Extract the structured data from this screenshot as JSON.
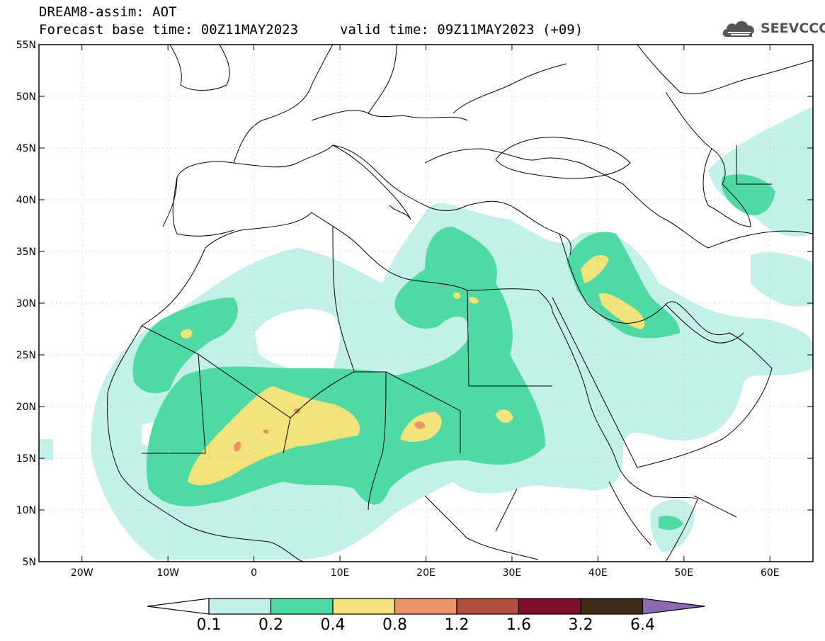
{
  "header": {
    "title_line1": "DREAM8-assim: AOT",
    "title_line2": "Forecast base time: 00Z11MAY2023",
    "valid_time": "valid time: 09Z11MAY2023 (+09)"
  },
  "logo": {
    "text": "SEEVCCC",
    "icon": "cloud-logo-icon"
  },
  "map": {
    "lon_range": [
      -25,
      65
    ],
    "lat_range": [
      5,
      55
    ],
    "lat_ticks": [
      "55N",
      "50N",
      "45N",
      "40N",
      "35N",
      "30N",
      "25N",
      "20N",
      "15N",
      "10N",
      "5N"
    ],
    "lon_ticks": [
      "20W",
      "10W",
      "0",
      "10E",
      "20E",
      "30E",
      "40E",
      "50E",
      "60E"
    ]
  },
  "colorbar": {
    "labels": [
      "0.1",
      "0.2",
      "0.4",
      "0.8",
      "1.2",
      "1.6",
      "3.2",
      "6.4"
    ],
    "colors": [
      "#ffffff",
      "#c4f0ea",
      "#4fdaa4",
      "#f2e47a",
      "#e8956a",
      "#b04e3e",
      "#7d0f2c",
      "#3e2a18",
      "#8c6ab0"
    ]
  },
  "levels": {
    "l1": "#c4f0ea",
    "l2": "#4fdaa4",
    "l3": "#f2e47a",
    "l4": "#e8956a"
  }
}
